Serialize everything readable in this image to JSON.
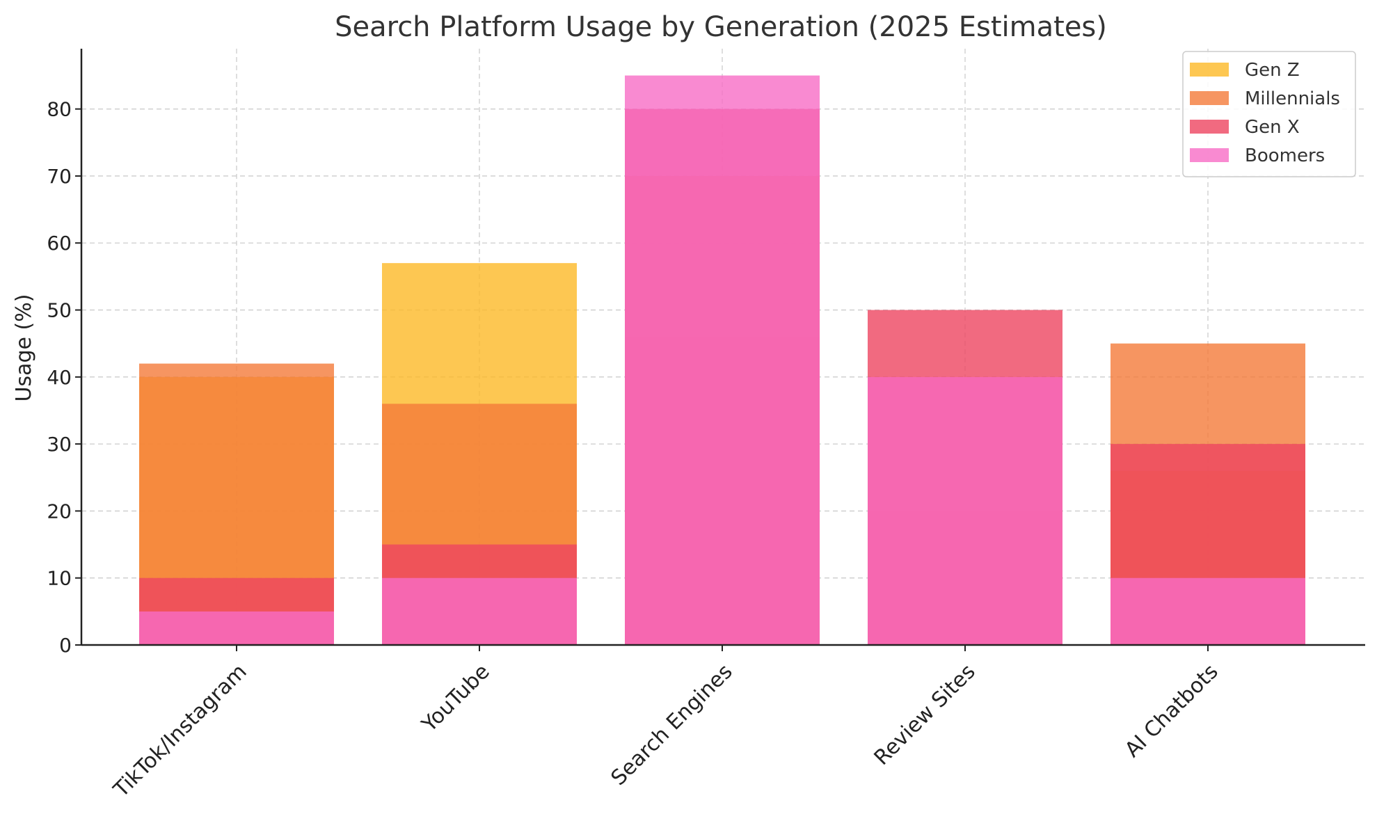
{
  "chart_data": {
    "type": "bar",
    "title": "Search Platform Usage by Generation (2025 Estimates)",
    "xlabel": "",
    "ylabel": "Usage (%)",
    "categories": [
      "TikTok/Instagram",
      "YouTube",
      "Search Engines",
      "Review Sites",
      "AI Chatbots"
    ],
    "series": [
      {
        "name": "Gen Z",
        "color": "#fdb927",
        "values": [
          40,
          57,
          46,
          20,
          26
        ]
      },
      {
        "name": "Millennials",
        "color": "#f47b3a",
        "values": [
          42,
          36,
          70,
          40,
          45
        ]
      },
      {
        "name": "Gen X",
        "color": "#ee4560",
        "values": [
          10,
          15,
          80,
          50,
          30
        ]
      },
      {
        "name": "Boomers",
        "color": "#f86dc6",
        "values": [
          5,
          10,
          85,
          40,
          10
        ]
      }
    ],
    "yticks": [
      0,
      10,
      20,
      30,
      40,
      50,
      60,
      70,
      80
    ],
    "ylim": [
      0,
      89
    ],
    "grid": true,
    "legend_position": "top-right",
    "overlapping_bars": true
  }
}
